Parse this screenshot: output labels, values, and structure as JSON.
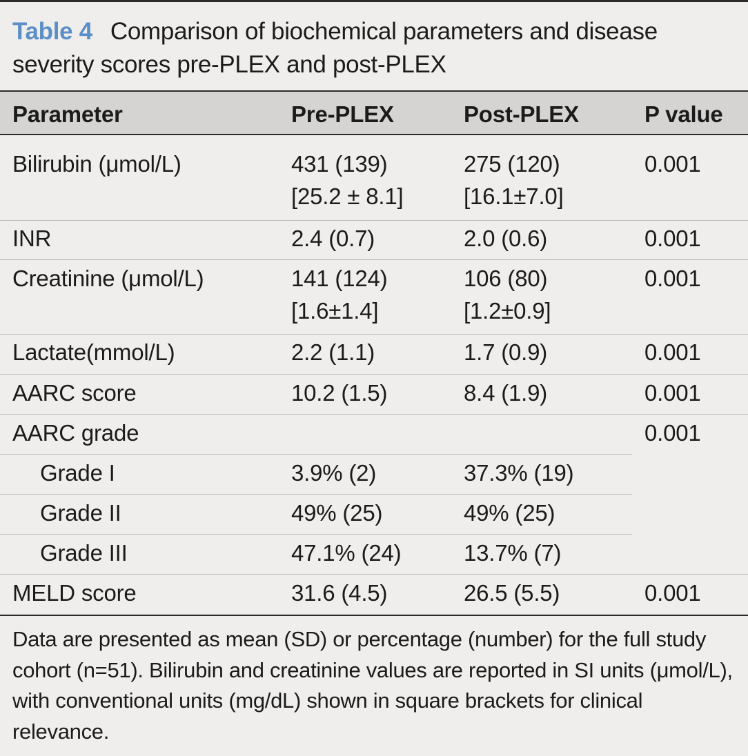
{
  "caption": {
    "label": "Table 4",
    "title": "Comparison of biochemical parameters and disease severity scores pre-PLEX and post-PLEX"
  },
  "columns": [
    "Parameter",
    "Pre-PLEX",
    "Post-PLEX",
    "P value"
  ],
  "rows": [
    {
      "parameter": "Bilirubin (μmol/L)",
      "pre": [
        "431 (139)",
        "[25.2 ± 8.1]"
      ],
      "post": [
        "275 (120)",
        "[16.1±7.0]"
      ],
      "p": "0.001"
    },
    {
      "parameter": "INR",
      "pre": [
        "2.4 (0.7)"
      ],
      "post": [
        "2.0 (0.6)"
      ],
      "p": "0.001"
    },
    {
      "parameter": "Creatinine (μmol/L)",
      "pre": [
        "141 (124)",
        "[1.6±1.4]"
      ],
      "post": [
        "106 (80)",
        "[1.2±0.9]"
      ],
      "p": "0.001"
    },
    {
      "parameter": "Lactate(mmol/L)",
      "pre": [
        "2.2 (1.1)"
      ],
      "post": [
        "1.7 (0.9)"
      ],
      "p": "0.001"
    },
    {
      "parameter": "AARC score",
      "pre": [
        "10.2 (1.5)"
      ],
      "post": [
        "8.4 (1.9)"
      ],
      "p": "0.001"
    },
    {
      "parameter": "AARC grade",
      "pre": [
        ""
      ],
      "post": [
        ""
      ],
      "p": "0.001"
    },
    {
      "parameter": "Grade I",
      "pre": [
        "3.9% (2)"
      ],
      "post": [
        "37.3% (19)"
      ],
      "p": ""
    },
    {
      "parameter": "Grade II",
      "pre": [
        "49% (25)"
      ],
      "post": [
        "49% (25)"
      ],
      "p": ""
    },
    {
      "parameter": "Grade III",
      "pre": [
        "47.1% (24)"
      ],
      "post": [
        "13.7% (7)"
      ],
      "p": ""
    },
    {
      "parameter": "MELD score",
      "pre": [
        "31.6 (4.5)"
      ],
      "post": [
        "26.5 (5.5)"
      ],
      "p": "0.001"
    }
  ],
  "footnote": "Data are presented as mean (SD) or percentage (number) for the full study cohort (n=51). Bilirubin and creatinine values are reported in SI units (μmol/L), with conventional units (mg/dL) shown in square brackets for clinical relevance."
}
